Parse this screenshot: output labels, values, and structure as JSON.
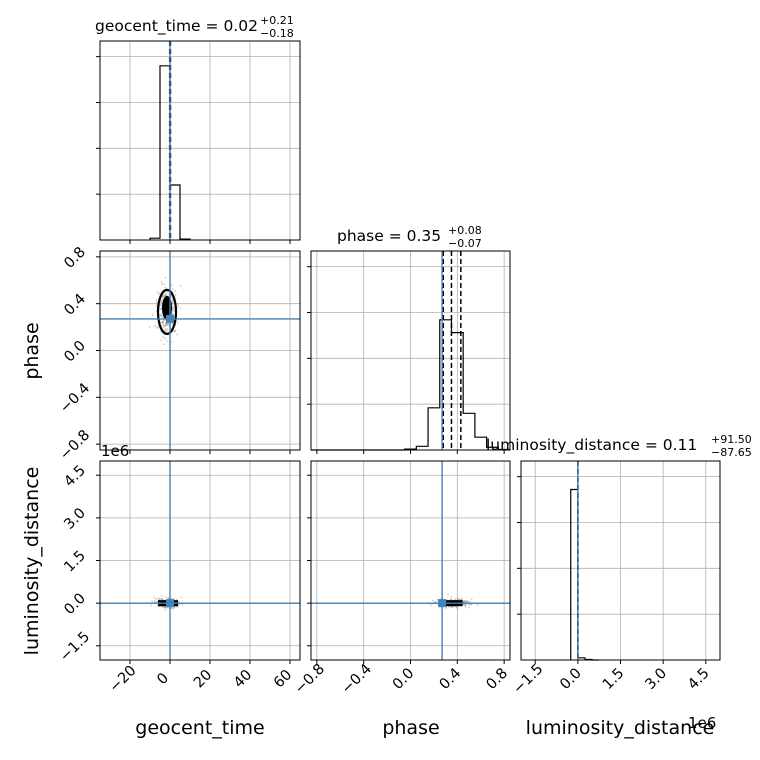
{
  "colors": {
    "hist": "#000000",
    "truth": "#4682b4",
    "grid": "#b0b0b0",
    "scatter": "#9a9a9a"
  },
  "chart_data": {
    "type": "corner",
    "parameters": [
      "geocent_time",
      "phase",
      "luminosity_distance"
    ],
    "truths": {
      "geocent_time": 0.0,
      "phase": 0.27,
      "luminosity_distance": 0.0
    },
    "titles": [
      {
        "param": "geocent_time",
        "name": "geocent_time",
        "median": "0.02",
        "plus": "+0.21",
        "minus": "−0.18"
      },
      {
        "param": "phase",
        "name": "phase",
        "median": "0.35",
        "plus": "+0.08",
        "minus": "−0.07"
      },
      {
        "param": "luminosity_distance",
        "name": "luminosity_distance",
        "median": "0.11",
        "plus": "+91.50",
        "minus": "−87.65"
      }
    ],
    "ranges": {
      "geocent_time": [
        -35,
        65
      ],
      "phase": [
        -0.85,
        0.85
      ],
      "luminosity_distance": [
        -2000000,
        5000000
      ]
    },
    "ticks": {
      "geocent_time": {
        "values": [
          -20,
          0,
          20,
          40,
          60
        ],
        "labels": [
          "−20",
          "0",
          "20",
          "40",
          "60"
        ]
      },
      "phase": {
        "values": [
          -0.8,
          -0.4,
          0.0,
          0.4,
          0.8
        ],
        "labels": [
          "−0.8",
          "−0.4",
          "0.0",
          "0.4",
          "0.8"
        ]
      },
      "luminosity_distance": {
        "values": [
          -1.5,
          0.0,
          1.5,
          3.0,
          4.5
        ],
        "labels": [
          "−1.5",
          "0.0",
          "1.5",
          "3.0",
          "4.5"
        ],
        "scale": 1000000
      }
    },
    "offset_text": "1e6",
    "axis_labels": {
      "geocent_time": "geocent_time",
      "phase": "phase",
      "luminosity_distance": "luminosity_distance"
    },
    "histograms": {
      "geocent_time": {
        "bins": [
          -10,
          -5,
          0,
          5,
          10
        ],
        "counts": [
          0.01,
          0.95,
          0.3,
          0.005
        ],
        "quantiles": [
          -0.16,
          0.02,
          0.23
        ]
      },
      "phase": {
        "bins": [
          -0.85,
          -0.75,
          -0.65,
          -0.55,
          -0.45,
          -0.35,
          -0.25,
          -0.15,
          -0.05,
          0.05,
          0.15,
          0.25,
          0.35,
          0.45,
          0.55,
          0.65,
          0.75,
          0.85
        ],
        "counts": [
          0,
          0,
          0,
          0,
          0,
          0,
          0,
          0,
          0.005,
          0.02,
          0.23,
          0.71,
          0.64,
          0.2,
          0.07,
          0.015,
          0.003
        ],
        "quantiles": [
          0.28,
          0.35,
          0.43
        ]
      },
      "luminosity_distance": {
        "bins": [
          -250000,
          0,
          250000,
          500000,
          750000
        ],
        "counts": [
          0.93,
          0.012,
          0.003,
          0.0
        ],
        "quantiles": [
          -88,
          0.11,
          92
        ]
      }
    },
    "contour_centers": [
      {
        "x": "geocent_time",
        "y": "phase",
        "cx": -1.5,
        "cy": 0.33
      },
      {
        "x": "geocent_time",
        "y": "luminosity_distance",
        "cx": -1.0,
        "cy": 0
      },
      {
        "x": "phase",
        "y": "luminosity_distance",
        "cx": 0.36,
        "cy": 0
      }
    ]
  }
}
